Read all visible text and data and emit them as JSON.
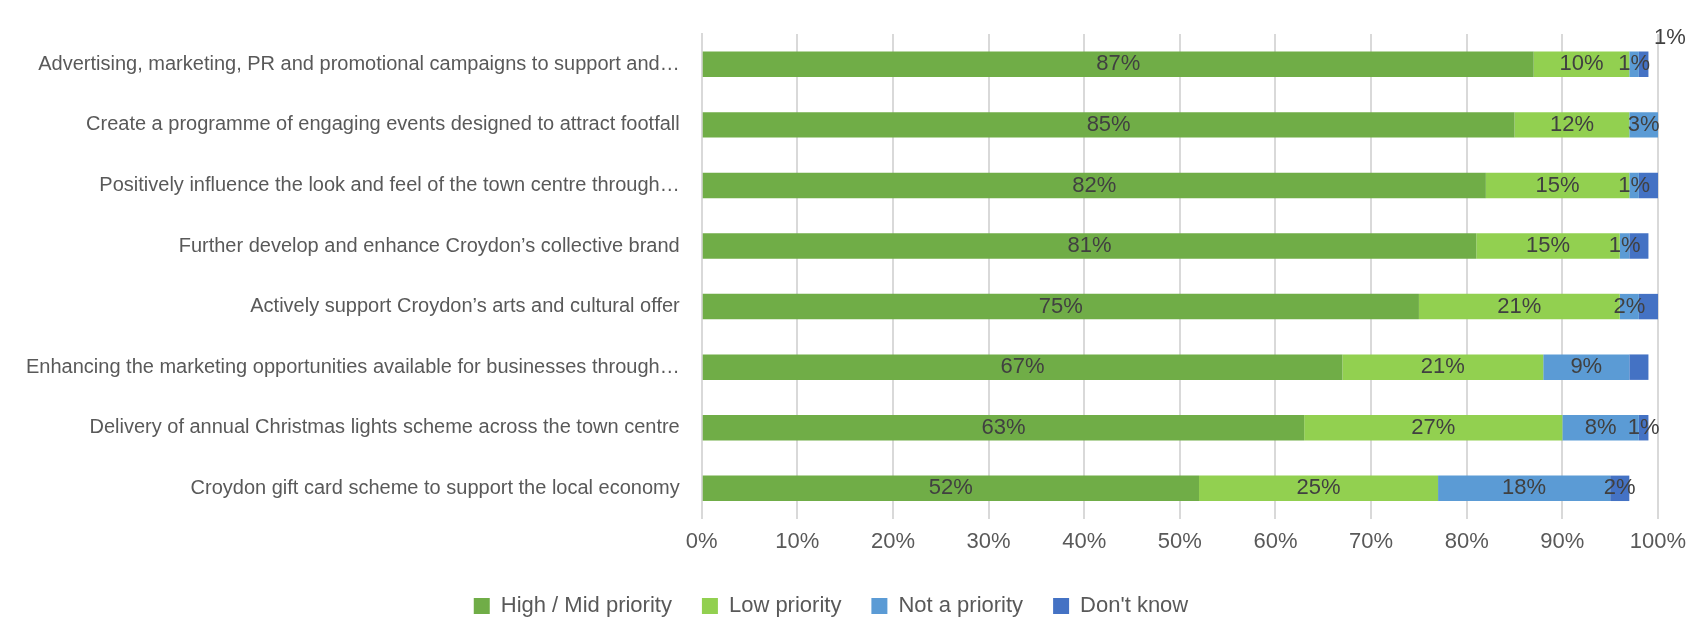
{
  "chart_data": {
    "type": "bar",
    "orientation": "horizontal",
    "stacked": true,
    "categories": [
      "Advertising, marketing, PR and promotional campaigns to support and…",
      "Create a programme of engaging events designed to attract footfall",
      "Positively influence the look and feel of the town centre through…",
      "Further develop and enhance Croydon’s collective brand",
      "Actively support Croydon’s arts and cultural offer",
      "Enhancing the marketing opportunities available for businesses through…",
      "Delivery of annual Christmas lights scheme across the town centre",
      "Croydon gift card scheme to support the local economy"
    ],
    "series": [
      {
        "name": "High / Mid priority",
        "color": "#70ad47",
        "values": [
          87,
          85,
          82,
          81,
          75,
          67,
          63,
          52
        ],
        "value_labels": [
          "87%",
          "85%",
          "82%",
          "81%",
          "75%",
          "67%",
          "63%",
          "52%"
        ]
      },
      {
        "name": "Low priority",
        "color": "#92d050",
        "values": [
          10,
          12,
          15,
          15,
          21,
          21,
          27,
          25
        ],
        "value_labels": [
          "10%",
          "12%",
          "15%",
          "15%",
          "21%",
          "21%",
          "27%",
          "25%"
        ]
      },
      {
        "name": "Not a priority",
        "color": "#5b9bd5",
        "values": [
          1,
          3,
          1,
          1,
          2,
          9,
          8,
          18
        ],
        "value_labels": [
          "1%",
          "3%",
          "1%",
          "1%",
          "2%",
          "9%",
          "8%",
          "18%"
        ]
      },
      {
        "name": "Don't know",
        "color": "#4472c4",
        "values": [
          1,
          null,
          2,
          2,
          2,
          2,
          1,
          2
        ],
        "value_labels": [
          "1%",
          null,
          null,
          null,
          null,
          null,
          "1%",
          "2%"
        ]
      }
    ],
    "xlim": [
      0,
      100
    ],
    "xticks": [
      {
        "value": 0,
        "label": "0%"
      },
      {
        "value": 10,
        "label": "10%"
      },
      {
        "value": 20,
        "label": "20%"
      },
      {
        "value": 30,
        "label": "30%"
      },
      {
        "value": 40,
        "label": "40%"
      },
      {
        "value": 50,
        "label": "50%"
      },
      {
        "value": 60,
        "label": "60%"
      },
      {
        "value": 70,
        "label": "70%"
      },
      {
        "value": 80,
        "label": "80%"
      },
      {
        "value": 90,
        "label": "90%"
      },
      {
        "value": 100,
        "label": "100%"
      }
    ],
    "grid": "x",
    "legend": "bottom"
  }
}
